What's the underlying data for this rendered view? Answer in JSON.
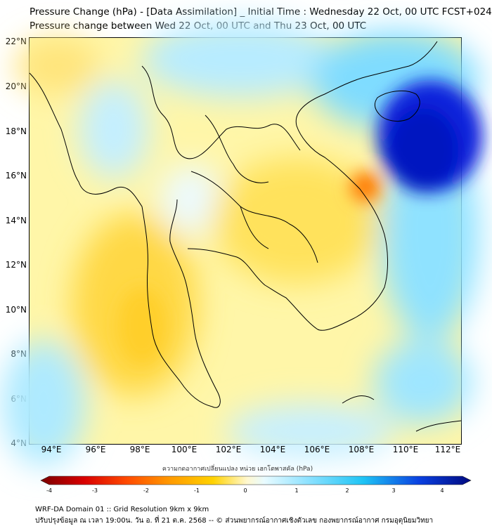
{
  "header": {
    "title_line1": "Pressure Change (hPa) - [Data Assimilation] _ Initial Time : Wednesday 22 Oct, 00 UTC FCST+024",
    "title_line2": "Pressure change between Wed 22 Oct, 00 UTC and Thu 23 Oct, 00 UTC"
  },
  "map": {
    "lat_labels": [
      "22°N",
      "20°N",
      "18°N",
      "16°N",
      "14°N",
      "12°N",
      "10°N",
      "8°N",
      "6°N",
      "4°N"
    ],
    "lon_labels": [
      "94°E",
      "96°E",
      "98°E",
      "100°E",
      "102°E",
      "104°E",
      "106°E",
      "108°E",
      "110°E",
      "112°E"
    ],
    "lat_range": [
      4,
      22
    ],
    "lon_range": [
      93,
      112.5
    ],
    "colors": {
      "strong_negative": "#ff6a00",
      "negative": "#ffd200",
      "neutral": "#fffde0",
      "positive_light": "#c6f0ff",
      "positive": "#29c8f2",
      "strong_positive": "#0018d8"
    }
  },
  "colorbar": {
    "title": "ความกดอากาศเปลี่ยนแปลง หน่วย เฮกโตพาสคัล (hPa)",
    "ticks": [
      "-4",
      "-3",
      "-2",
      "-1",
      "0",
      "1",
      "2",
      "3",
      "4"
    ]
  },
  "footer": {
    "line1": "WRF-DA Domain 01 :: Grid Resolution 9km x 9km",
    "line2": "ปรับปรุงข้อมูล ณ เวลา 19:00น. วัน อ. ที่ 21 ต.ค. 2568 -- © ส่วนพยากรณ์อากาศเชิงตัวเลข กองพยากรณ์อากาศ กรมอุตุนิยมวิทยา"
  }
}
